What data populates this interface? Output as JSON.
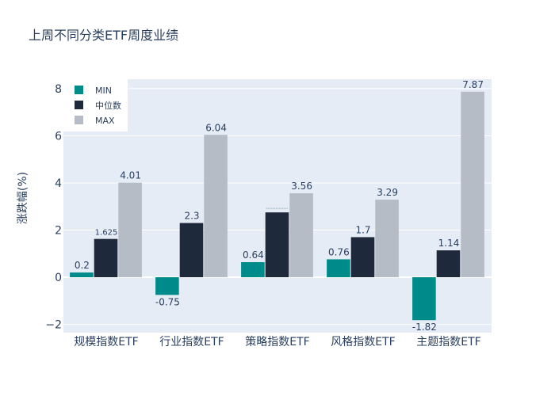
{
  "chart_data": {
    "type": "bar",
    "title": "上周不同分类ETF周度业绩",
    "xlabel": "",
    "ylabel": "涨跌幅(%)",
    "categories": [
      "规模指数ETF",
      "行业指数ETF",
      "策略指数ETF",
      "风格指数ETF",
      "主题指数ETF"
    ],
    "series": [
      {
        "name": "MIN",
        "values": [
          0.2,
          -0.75,
          0.64,
          0.76,
          -1.82
        ],
        "labels": [
          "0.2",
          "-0.75",
          "0.64",
          "0.76",
          "-1.82"
        ],
        "color": "#008b8b"
      },
      {
        "name": "中位数",
        "values": [
          1.625,
          2.3,
          2.75,
          1.7,
          1.14
        ],
        "labels": [
          "1.625",
          "2.3",
          "",
          "1.7",
          "1.14"
        ],
        "color": "#1e293b"
      },
      {
        "name": "MAX",
        "values": [
          4.01,
          6.04,
          3.56,
          3.29,
          7.87
        ],
        "labels": [
          "4.01",
          "6.04",
          "3.56",
          "3.29",
          "7.87"
        ],
        "color": "#b5bcc6"
      }
    ],
    "ylim": [
      -2.35,
      8.4
    ],
    "yticks": [
      -2,
      0,
      2,
      4,
      6,
      8
    ],
    "ytick_labels": [
      "−2",
      "0",
      "2",
      "4",
      "6",
      "8"
    ],
    "grid": true,
    "legend_position": "top-left",
    "plot_bgcolor": "#e5ecf6"
  }
}
